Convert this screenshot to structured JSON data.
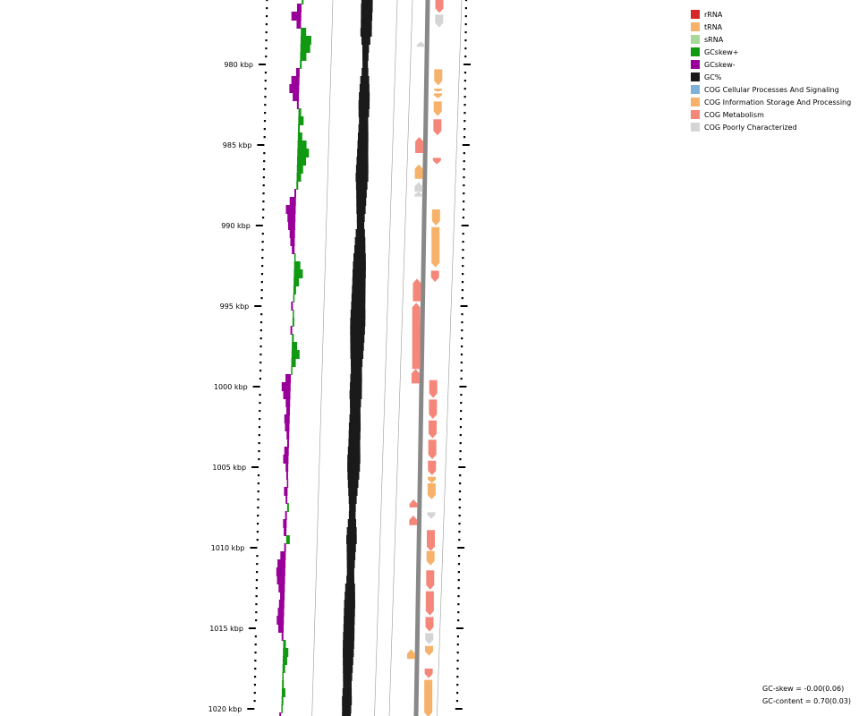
{
  "legend": [
    {
      "label": "rRNA",
      "color": "#d62728"
    },
    {
      "label": "tRNA",
      "color": "#f6b26b"
    },
    {
      "label": "sRNA",
      "color": "#a8d99a"
    },
    {
      "label": "GCskew+",
      "color": "#119911"
    },
    {
      "label": "GCskew-",
      "color": "#990099"
    },
    {
      "label": "GC%",
      "color": "#1a1a1a"
    },
    {
      "label": "COG Cellular Processes And Signaling",
      "color": "#7fb0d8"
    },
    {
      "label": "COG Information Storage And Processing",
      "color": "#f6b26b"
    },
    {
      "label": "COG Metabolism",
      "color": "#f5877a"
    },
    {
      "label": "COG Poorly Characterized",
      "color": "#d5d5d5"
    }
  ],
  "axis": {
    "ticks": [
      {
        "kbp": 980,
        "label": "980 kbp"
      },
      {
        "kbp": 985,
        "label": "985 kbp"
      },
      {
        "kbp": 990,
        "label": "990 kbp"
      },
      {
        "kbp": 995,
        "label": "995 kbp"
      },
      {
        "kbp": 1000,
        "label": "1000 kbp"
      },
      {
        "kbp": 1005,
        "label": "1005 kbp"
      },
      {
        "kbp": 1010,
        "label": "1010 kbp"
      },
      {
        "kbp": 1015,
        "label": "1015 kbp"
      },
      {
        "kbp": 1020,
        "label": "1020 kbp"
      }
    ]
  },
  "stats": {
    "gc_skew": "GC-skew = -0.00(0.06)",
    "gc_content": "GC-content = 0.70(0.03)"
  },
  "tracks": {
    "forward_genes": [
      {
        "start": 976.0,
        "end": 976.8,
        "category": "COG Metabolism"
      },
      {
        "start": 976.9,
        "end": 977.7,
        "category": "COG Poorly Characterized"
      },
      {
        "start": 980.3,
        "end": 981.3,
        "category": "COG Information Storage And Processing"
      },
      {
        "start": 981.5,
        "end": 981.7,
        "category": "COG Information Storage And Processing"
      },
      {
        "start": 981.8,
        "end": 982.1,
        "category": "COG Information Storage And Processing"
      },
      {
        "start": 982.3,
        "end": 983.2,
        "category": "COG Information Storage And Processing"
      },
      {
        "start": 983.4,
        "end": 984.4,
        "category": "COG Metabolism"
      },
      {
        "start": 985.8,
        "end": 986.2,
        "category": "COG Metabolism"
      },
      {
        "start": 989.0,
        "end": 990.0,
        "category": "COG Information Storage And Processing"
      },
      {
        "start": 990.1,
        "end": 992.6,
        "category": "COG Information Storage And Processing"
      },
      {
        "start": 992.8,
        "end": 993.5,
        "category": "COG Metabolism"
      },
      {
        "start": 999.6,
        "end": 1000.7,
        "category": "COG Metabolism"
      },
      {
        "start": 1000.8,
        "end": 1002.0,
        "category": "COG Metabolism"
      },
      {
        "start": 1002.1,
        "end": 1003.2,
        "category": "COG Metabolism"
      },
      {
        "start": 1003.3,
        "end": 1004.5,
        "category": "COG Metabolism"
      },
      {
        "start": 1004.6,
        "end": 1005.5,
        "category": "COG Metabolism"
      },
      {
        "start": 1005.6,
        "end": 1006.0,
        "category": "COG Information Storage And Processing"
      },
      {
        "start": 1006.0,
        "end": 1007.0,
        "category": "COG Information Storage And Processing"
      },
      {
        "start": 1007.8,
        "end": 1008.2,
        "category": "COG Poorly Characterized"
      },
      {
        "start": 1008.9,
        "end": 1010.2,
        "category": "COG Metabolism"
      },
      {
        "start": 1010.2,
        "end": 1011.1,
        "category": "COG Information Storage And Processing"
      },
      {
        "start": 1011.4,
        "end": 1012.6,
        "category": "COG Metabolism"
      },
      {
        "start": 1012.7,
        "end": 1014.2,
        "category": "COG Metabolism"
      },
      {
        "start": 1014.3,
        "end": 1015.2,
        "category": "COG Metabolism"
      },
      {
        "start": 1015.3,
        "end": 1016.0,
        "category": "COG Poorly Characterized"
      },
      {
        "start": 1016.1,
        "end": 1016.7,
        "category": "COG Information Storage And Processing"
      },
      {
        "start": 1017.5,
        "end": 1018.1,
        "category": "COG Metabolism"
      },
      {
        "start": 1018.2,
        "end": 1020.5,
        "category": "COG Information Storage And Processing"
      }
    ],
    "reverse_genes": [
      {
        "start": 978.6,
        "end": 978.9,
        "category": "COG Poorly Characterized"
      },
      {
        "start": 984.5,
        "end": 985.5,
        "category": "COG Metabolism"
      },
      {
        "start": 986.2,
        "end": 987.1,
        "category": "COG Information Storage And Processing"
      },
      {
        "start": 987.3,
        "end": 987.9,
        "category": "COG Poorly Characterized"
      },
      {
        "start": 987.9,
        "end": 988.2,
        "category": "COG Poorly Characterized"
      },
      {
        "start": 993.3,
        "end": 994.7,
        "category": "COG Metabolism"
      },
      {
        "start": 994.8,
        "end": 998.9,
        "category": "COG Metabolism"
      },
      {
        "start": 998.9,
        "end": 999.8,
        "category": "COG Metabolism"
      },
      {
        "start": 1007.0,
        "end": 1007.5,
        "category": "COG Metabolism"
      },
      {
        "start": 1008.0,
        "end": 1008.6,
        "category": "COG Metabolism"
      },
      {
        "start": 1016.3,
        "end": 1016.9,
        "category": "COG Information Storage And Processing"
      }
    ],
    "gc_skew_points": [
      [
        975.5,
        0.004
      ],
      [
        976.0,
        0.004
      ],
      [
        976.5,
        -0.01
      ],
      [
        977.0,
        -0.022
      ],
      [
        977.5,
        -0.01
      ],
      [
        978.0,
        0.012
      ],
      [
        978.5,
        0.024
      ],
      [
        979.0,
        0.022
      ],
      [
        979.5,
        0.014
      ],
      [
        980.0,
        0.004
      ],
      [
        980.5,
        -0.008
      ],
      [
        981.0,
        -0.018
      ],
      [
        981.5,
        -0.022
      ],
      [
        982.0,
        -0.014
      ],
      [
        982.5,
        -0.004
      ],
      [
        983.0,
        0.006
      ],
      [
        983.5,
        0.012
      ],
      [
        984.0,
        0.004
      ],
      [
        984.5,
        0.01
      ],
      [
        985.0,
        0.02
      ],
      [
        985.5,
        0.026
      ],
      [
        986.0,
        0.02
      ],
      [
        986.5,
        0.014
      ],
      [
        987.0,
        0.01
      ],
      [
        987.5,
        0.004
      ],
      [
        988.0,
        -0.004
      ],
      [
        988.5,
        -0.014
      ],
      [
        989.0,
        -0.022
      ],
      [
        989.5,
        -0.018
      ],
      [
        990.0,
        -0.016
      ],
      [
        990.5,
        -0.012
      ],
      [
        991.0,
        -0.01
      ],
      [
        991.5,
        -0.006
      ],
      [
        992.0,
        0.002
      ],
      [
        992.5,
        0.014
      ],
      [
        993.0,
        0.02
      ],
      [
        993.5,
        0.012
      ],
      [
        994.0,
        0.006
      ],
      [
        994.5,
        0.002
      ],
      [
        995.0,
        -0.004
      ],
      [
        995.5,
        0.002
      ],
      [
        996.0,
        0.004
      ],
      [
        996.5,
        -0.004
      ],
      [
        997.0,
        0.004
      ],
      [
        997.5,
        0.012
      ],
      [
        998.0,
        0.018
      ],
      [
        998.5,
        0.01
      ],
      [
        999.0,
        0.002
      ],
      [
        999.5,
        -0.012
      ],
      [
        1000.0,
        -0.02
      ],
      [
        1000.5,
        -0.016
      ],
      [
        1001.0,
        -0.01
      ],
      [
        1001.5,
        -0.008
      ],
      [
        1002.0,
        -0.012
      ],
      [
        1002.5,
        -0.01
      ],
      [
        1003.0,
        -0.006
      ],
      [
        1003.5,
        -0.004
      ],
      [
        1004.0,
        -0.01
      ],
      [
        1004.5,
        -0.012
      ],
      [
        1005.0,
        -0.006
      ],
      [
        1005.5,
        -0.004
      ],
      [
        1006.0,
        -0.002
      ],
      [
        1006.5,
        -0.008
      ],
      [
        1007.0,
        -0.004
      ],
      [
        1007.5,
        0.004
      ],
      [
        1008.0,
        -0.004
      ],
      [
        1008.5,
        -0.008
      ],
      [
        1009.0,
        -0.006
      ],
      [
        1009.5,
        0.008
      ],
      [
        1010.0,
        -0.004
      ],
      [
        1010.5,
        -0.012
      ],
      [
        1011.0,
        -0.018
      ],
      [
        1011.5,
        -0.02
      ],
      [
        1012.0,
        -0.018
      ],
      [
        1012.5,
        -0.014
      ],
      [
        1013.0,
        -0.01
      ],
      [
        1013.5,
        -0.012
      ],
      [
        1014.0,
        -0.014
      ],
      [
        1014.5,
        -0.016
      ],
      [
        1015.0,
        -0.012
      ],
      [
        1015.5,
        -0.004
      ],
      [
        1016.0,
        0.006
      ],
      [
        1016.5,
        0.012
      ],
      [
        1017.0,
        0.01
      ],
      [
        1017.5,
        0.006
      ],
      [
        1018.0,
        0.002
      ],
      [
        1018.5,
        0.004
      ],
      [
        1019.0,
        0.008
      ],
      [
        1019.5,
        0.004
      ],
      [
        1020.0,
        0.002
      ],
      [
        1020.5,
        -0.004
      ]
    ],
    "gc_content_points": [
      [
        975.5,
        0.705
      ],
      [
        976.0,
        0.705
      ],
      [
        976.5,
        0.706
      ],
      [
        977.0,
        0.705
      ],
      [
        977.5,
        0.704
      ],
      [
        978.0,
        0.705
      ],
      [
        978.5,
        0.697
      ],
      [
        979.0,
        0.69
      ],
      [
        979.5,
        0.688
      ],
      [
        980.0,
        0.686
      ],
      [
        980.5,
        0.69
      ],
      [
        981.0,
        0.697
      ],
      [
        981.5,
        0.7
      ],
      [
        982.0,
        0.703
      ],
      [
        982.5,
        0.704
      ],
      [
        983.0,
        0.702
      ],
      [
        983.5,
        0.698
      ],
      [
        984.0,
        0.7
      ],
      [
        984.5,
        0.702
      ],
      [
        985.0,
        0.703
      ],
      [
        985.5,
        0.704
      ],
      [
        986.0,
        0.706
      ],
      [
        986.5,
        0.708
      ],
      [
        987.0,
        0.709
      ],
      [
        987.5,
        0.705
      ],
      [
        988.0,
        0.702
      ],
      [
        988.5,
        0.7
      ],
      [
        989.0,
        0.698
      ],
      [
        989.5,
        0.694
      ],
      [
        990.0,
        0.692
      ],
      [
        990.5,
        0.698
      ],
      [
        991.0,
        0.702
      ],
      [
        991.5,
        0.704
      ],
      [
        992.0,
        0.708
      ],
      [
        992.5,
        0.71
      ],
      [
        993.0,
        0.711
      ],
      [
        993.5,
        0.711
      ],
      [
        994.0,
        0.712
      ],
      [
        994.5,
        0.713
      ],
      [
        995.0,
        0.714
      ],
      [
        995.5,
        0.716
      ],
      [
        996.0,
        0.717
      ],
      [
        996.5,
        0.716
      ],
      [
        997.0,
        0.714
      ],
      [
        997.5,
        0.712
      ],
      [
        998.0,
        0.71
      ],
      [
        998.5,
        0.706
      ],
      [
        999.0,
        0.704
      ],
      [
        999.5,
        0.706
      ],
      [
        1000.0,
        0.707
      ],
      [
        1000.5,
        0.708
      ],
      [
        1001.0,
        0.704
      ],
      [
        1001.5,
        0.702
      ],
      [
        1002.0,
        0.704
      ],
      [
        1002.5,
        0.706
      ],
      [
        1003.0,
        0.706
      ],
      [
        1003.5,
        0.706
      ],
      [
        1004.0,
        0.708
      ],
      [
        1004.5,
        0.71
      ],
      [
        1005.0,
        0.709
      ],
      [
        1005.5,
        0.706
      ],
      [
        1006.0,
        0.702
      ],
      [
        1006.5,
        0.698
      ],
      [
        1007.0,
        0.694
      ],
      [
        1007.5,
        0.69
      ],
      [
        1008.0,
        0.69
      ],
      [
        1008.5,
        0.695
      ],
      [
        1009.0,
        0.7
      ],
      [
        1009.5,
        0.702
      ],
      [
        1010.0,
        0.698
      ],
      [
        1010.5,
        0.696
      ],
      [
        1011.0,
        0.694
      ],
      [
        1011.5,
        0.692
      ],
      [
        1012.0,
        0.694
      ],
      [
        1012.5,
        0.7
      ],
      [
        1013.0,
        0.702
      ],
      [
        1013.5,
        0.704
      ],
      [
        1014.0,
        0.704
      ],
      [
        1014.5,
        0.704
      ],
      [
        1015.0,
        0.704
      ],
      [
        1015.5,
        0.705
      ],
      [
        1016.0,
        0.705
      ],
      [
        1016.5,
        0.704
      ],
      [
        1017.0,
        0.702
      ],
      [
        1017.5,
        0.7
      ],
      [
        1018.0,
        0.698
      ],
      [
        1018.5,
        0.696
      ],
      [
        1019.0,
        0.698
      ],
      [
        1019.5,
        0.7
      ],
      [
        1020.0,
        0.698
      ],
      [
        1020.5,
        0.697
      ]
    ]
  }
}
